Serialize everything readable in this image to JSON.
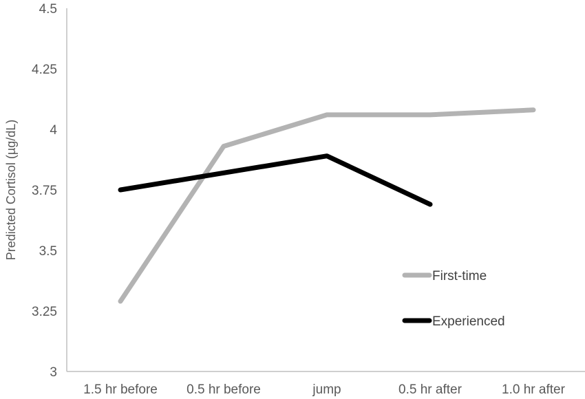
{
  "chart_data": {
    "type": "line",
    "title": "",
    "xlabel": "",
    "ylabel": "Predicted Cortisol (µg/dL)",
    "ylim": [
      3,
      4.5
    ],
    "yticks": [
      "3",
      "3.25",
      "3.5",
      "3.75",
      "4",
      "4.25",
      "4.5"
    ],
    "categories": [
      "1.5 hr before",
      "0.5 hr before",
      "jump",
      "0.5 hr after",
      "1.0 hr after"
    ],
    "grid": false,
    "legend_position": "right",
    "series": [
      {
        "name": "First-time",
        "color": "#b3b3b3",
        "values": [
          3.29,
          3.93,
          4.06,
          4.06,
          4.08
        ]
      },
      {
        "name": "Experienced",
        "color": "#000000",
        "values": [
          3.75,
          null,
          3.89,
          3.69,
          null
        ]
      }
    ]
  }
}
